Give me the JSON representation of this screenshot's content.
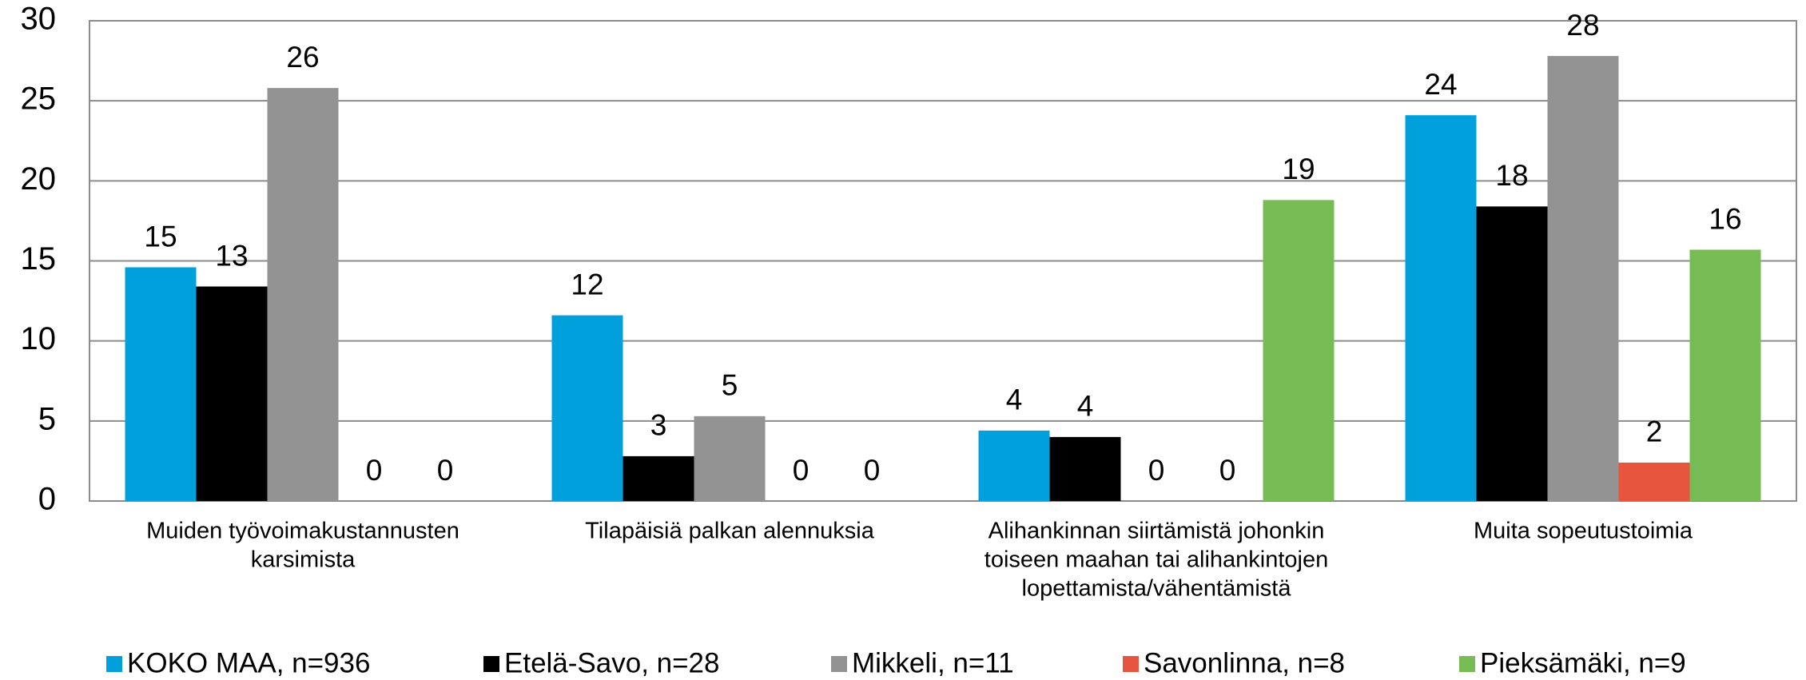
{
  "chart_data": {
    "type": "bar",
    "categories": [
      [
        "Muiden työvoimakustannusten",
        "karsimista"
      ],
      [
        "Tilapäisiä palkan alennuksia"
      ],
      [
        "Alihankinnan siirtämistä johonkin",
        "toiseen maahan tai alihankintojen",
        "lopettamista/vähentämistä"
      ],
      [
        "Muita sopeutustoimia"
      ]
    ],
    "series": [
      {
        "name": "KOKO MAA, n=936",
        "color": "#00a0dc",
        "values": [
          14.6,
          11.6,
          4.4,
          24.1
        ],
        "value_labels": [
          "15",
          "12",
          "4",
          "24"
        ]
      },
      {
        "name": "Etelä-Savo, n=28",
        "color": "#000000",
        "values": [
          13.4,
          2.8,
          4.0,
          18.4
        ],
        "value_labels": [
          "13",
          "3",
          "4",
          "18"
        ]
      },
      {
        "name": "Mikkeli, n=11",
        "color": "#939393",
        "values": [
          25.8,
          5.3,
          0,
          27.8
        ],
        "value_labels": [
          "26",
          "5",
          "0",
          "28"
        ]
      },
      {
        "name": "Savonlinna, n=8",
        "color": "#e8553e",
        "values": [
          0,
          0,
          0,
          2.4
        ],
        "value_labels": [
          "0",
          "0",
          "0",
          "2"
        ]
      },
      {
        "name": "Pieksämäki, n=9",
        "color": "#77bb55",
        "values": [
          0,
          0,
          18.8,
          15.7
        ],
        "value_labels": [
          "0",
          "0",
          "19",
          "16"
        ]
      }
    ],
    "ylim": [
      0,
      30
    ],
    "yticks": [
      0,
      5,
      10,
      15,
      20,
      25,
      30
    ],
    "grid": true,
    "legend": "bottom"
  }
}
